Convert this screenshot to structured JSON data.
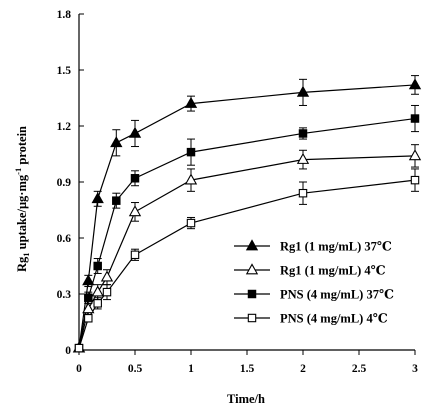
{
  "chart_data": {
    "type": "line",
    "xlabel": "Time/h",
    "ylabel_main": "Rg",
    "ylabel_sub": "1",
    "ylabel_mid": " uptake/μg·mg",
    "ylabel_sup": "-1",
    "ylabel_end": " protein",
    "xlim": [
      0,
      3
    ],
    "ylim": [
      0,
      1.8
    ],
    "xticks": [
      "0",
      "0.5",
      "1",
      "1.5",
      "2",
      "2.5",
      "3"
    ],
    "xtick_values": [
      0,
      0.5,
      1,
      1.5,
      2,
      2.5,
      3
    ],
    "yticks": [
      "0",
      "0.3",
      "0.6",
      "0.9",
      "1.2",
      "1.5",
      "1.8"
    ],
    "ytick_values": [
      0,
      0.3,
      0.6,
      0.9,
      1.2,
      1.5,
      1.8
    ],
    "grid": false,
    "legend_position": "bottom-right",
    "series": [
      {
        "name": "Rg1 (1 mg/mL) 37℃",
        "marker": "triangle-filled",
        "x": [
          0,
          0.083,
          0.167,
          0.333,
          0.5,
          1,
          2,
          3
        ],
        "y": [
          0.01,
          0.37,
          0.81,
          1.11,
          1.16,
          1.32,
          1.38,
          1.42
        ],
        "err": [
          0.01,
          0.03,
          0.04,
          0.07,
          0.07,
          0.04,
          0.07,
          0.05
        ]
      },
      {
        "name": "Rg1 (1 mg/mL) 4℃",
        "marker": "triangle-open",
        "x": [
          0,
          0.083,
          0.167,
          0.25,
          0.5,
          1,
          2,
          3
        ],
        "y": [
          0.01,
          0.22,
          0.31,
          0.39,
          0.74,
          0.91,
          1.02,
          1.04
        ],
        "err": [
          0.01,
          0.03,
          0.04,
          0.04,
          0.05,
          0.06,
          0.05,
          0.06
        ]
      },
      {
        "name": "PNS (4 mg/mL) 37℃",
        "marker": "square-filled",
        "x": [
          0,
          0.083,
          0.167,
          0.333,
          0.5,
          1,
          2,
          3
        ],
        "y": [
          0.01,
          0.28,
          0.45,
          0.8,
          0.92,
          1.06,
          1.16,
          1.24
        ],
        "err": [
          0.01,
          0.03,
          0.04,
          0.04,
          0.04,
          0.07,
          0.03,
          0.07
        ]
      },
      {
        "name": "PNS (4 mg/mL) 4℃",
        "marker": "square-open",
        "x": [
          0,
          0.083,
          0.167,
          0.25,
          0.5,
          1,
          2,
          3
        ],
        "y": [
          0.01,
          0.17,
          0.25,
          0.31,
          0.51,
          0.68,
          0.84,
          0.91
        ],
        "err": [
          0.01,
          0.02,
          0.03,
          0.04,
          0.03,
          0.03,
          0.06,
          0.06
        ]
      }
    ]
  }
}
